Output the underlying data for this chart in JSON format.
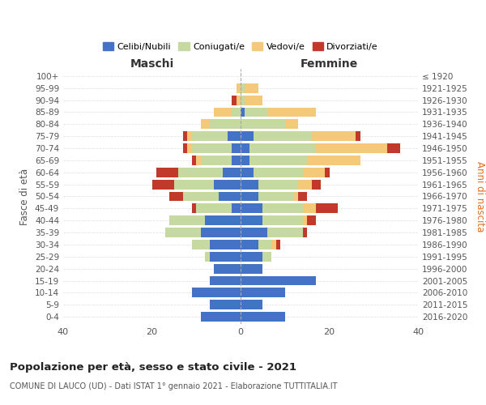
{
  "age_groups": [
    "0-4",
    "5-9",
    "10-14",
    "15-19",
    "20-24",
    "25-29",
    "30-34",
    "35-39",
    "40-44",
    "45-49",
    "50-54",
    "55-59",
    "60-64",
    "65-69",
    "70-74",
    "75-79",
    "80-84",
    "85-89",
    "90-94",
    "95-99",
    "100+"
  ],
  "birth_years": [
    "2016-2020",
    "2011-2015",
    "2006-2010",
    "2001-2005",
    "1996-2000",
    "1991-1995",
    "1986-1990",
    "1981-1985",
    "1976-1980",
    "1971-1975",
    "1966-1970",
    "1961-1965",
    "1956-1960",
    "1951-1955",
    "1946-1950",
    "1941-1945",
    "1936-1940",
    "1931-1935",
    "1926-1930",
    "1921-1925",
    "≤ 1920"
  ],
  "colors": {
    "celibe": "#4472c4",
    "coniugato": "#c5d9a0",
    "vedovo": "#f5c97a",
    "divorziato": "#c0392b"
  },
  "maschi": {
    "celibe": [
      9,
      7,
      11,
      7,
      6,
      7,
      7,
      9,
      8,
      2,
      5,
      6,
      4,
      2,
      2,
      3,
      0,
      0,
      0,
      0,
      0
    ],
    "coniugato": [
      0,
      0,
      0,
      0,
      0,
      1,
      4,
      8,
      8,
      8,
      8,
      9,
      10,
      7,
      9,
      8,
      7,
      2,
      0,
      0,
      0
    ],
    "vedovo": [
      0,
      0,
      0,
      0,
      0,
      0,
      0,
      0,
      0,
      0,
      0,
      0,
      0,
      1,
      1,
      1,
      2,
      4,
      1,
      1,
      0
    ],
    "divorziato": [
      0,
      0,
      0,
      0,
      0,
      0,
      0,
      0,
      0,
      1,
      3,
      5,
      5,
      1,
      1,
      1,
      0,
      0,
      1,
      0,
      0
    ]
  },
  "femmine": {
    "celibe": [
      10,
      5,
      10,
      17,
      5,
      5,
      4,
      6,
      5,
      5,
      4,
      4,
      3,
      2,
      2,
      3,
      0,
      1,
      0,
      0,
      0
    ],
    "coniugato": [
      0,
      0,
      0,
      0,
      0,
      2,
      3,
      8,
      9,
      9,
      8,
      9,
      11,
      13,
      15,
      13,
      10,
      5,
      1,
      1,
      0
    ],
    "vedovo": [
      0,
      0,
      0,
      0,
      0,
      0,
      1,
      0,
      1,
      3,
      1,
      3,
      5,
      12,
      16,
      10,
      3,
      11,
      4,
      3,
      0
    ],
    "divorziato": [
      0,
      0,
      0,
      0,
      0,
      0,
      1,
      1,
      2,
      5,
      2,
      2,
      1,
      0,
      3,
      1,
      0,
      0,
      0,
      0,
      0
    ]
  },
  "xlim": 40,
  "title": "Popolazione per età, sesso e stato civile - 2021",
  "subtitle": "COMUNE DI LAUCO (UD) - Dati ISTAT 1° gennaio 2021 - Elaborazione TUTTITALIA.IT",
  "ylabel_left": "Fasce di età",
  "ylabel_right": "Anni di nascita",
  "xlabel_left": "Maschi",
  "xlabel_right": "Femmine"
}
